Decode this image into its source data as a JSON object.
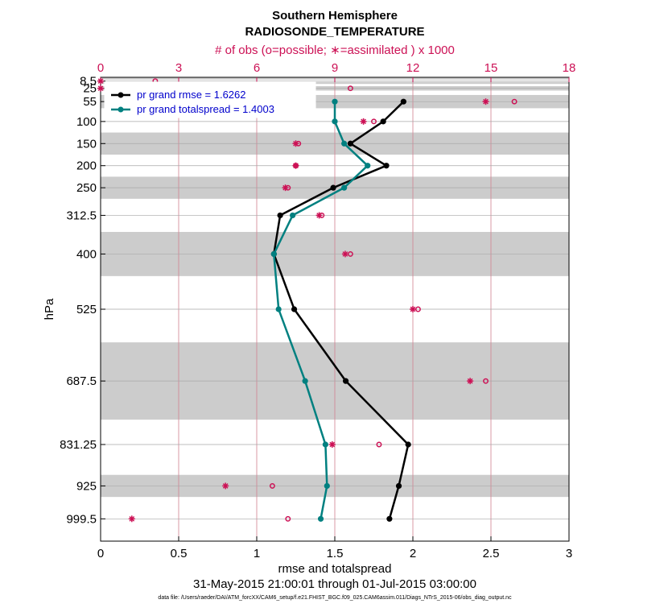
{
  "chart_data": {
    "type": "line",
    "title": "Southern Hemisphere",
    "subtitle": "RADIOSONDE_TEMPERATURE",
    "top_axis_label": "# of obs (o=possible; ∗=assimilated ) x 1000",
    "xlabel": "rmse and totalspread",
    "ylabel": "hPa",
    "date_range": "31-May-2015 21:00:01 through 01-Jul-2015 03:00:00",
    "data_file": "data file: /Users/raeder/DAI/ATM_forcXX/CAM6_setup/f.e21.FHIST_BGC.f09_025.CAM6assim.011/Diags_NTrS_2015-06/obs_diag_output.nc",
    "xlim": [
      0,
      3
    ],
    "xticks": [
      "0",
      "0.5",
      "1",
      "1.5",
      "2",
      "2.5",
      "3"
    ],
    "top_xlim": [
      0,
      18
    ],
    "top_xticks": [
      "0",
      "3",
      "6",
      "9",
      "12",
      "15",
      "18"
    ],
    "ylim": [
      1050,
      0
    ],
    "levels": [
      8.5,
      25,
      55,
      100,
      150,
      200,
      250,
      312.5,
      400,
      525,
      687.5,
      831.25,
      925,
      999.5
    ],
    "level_labels": [
      "8.5",
      "25",
      "55",
      "100",
      "150",
      "200",
      "250",
      "312.5",
      "400",
      "525",
      "687.5",
      "831.25",
      "925",
      "999.5"
    ],
    "series": [
      {
        "name": "pr grand rmse = 1.6262",
        "color": "#000000",
        "levels": [
          55,
          100,
          150,
          200,
          250,
          312.5,
          400,
          525,
          687.5,
          831.25,
          925,
          999.5
        ],
        "values": [
          1.94,
          1.81,
          1.6,
          1.83,
          1.49,
          1.15,
          1.11,
          1.24,
          1.57,
          1.97,
          1.91,
          1.85
        ]
      },
      {
        "name": "pr grand totalspread = 1.4003",
        "color": "#008080",
        "levels": [
          55,
          100,
          150,
          200,
          250,
          312.5,
          400,
          525,
          687.5,
          831.25,
          925,
          999.5
        ],
        "values": [
          1.5,
          1.5,
          1.56,
          1.71,
          1.56,
          1.23,
          1.11,
          1.14,
          1.31,
          1.44,
          1.45,
          1.41
        ]
      }
    ],
    "obs_possible": {
      "levels": [
        8.5,
        25,
        55,
        100,
        150,
        200,
        250,
        312.5,
        400,
        525,
        687.5,
        831.25,
        925,
        999.5
      ],
      "values": [
        2.1,
        9.6,
        15.9,
        10.5,
        7.6,
        7.5,
        7.2,
        8.5,
        9.6,
        12.2,
        14.8,
        10.7,
        6.6,
        7.2
      ]
    },
    "obs_assimilated": {
      "levels": [
        8.5,
        25,
        55,
        100,
        150,
        200,
        250,
        312.5,
        400,
        525,
        687.5,
        831.25,
        925,
        999.5
      ],
      "values": [
        0.0,
        0.0,
        14.8,
        10.1,
        7.5,
        7.5,
        7.1,
        8.4,
        9.4,
        12.0,
        14.2,
        8.9,
        4.8,
        1.2
      ]
    },
    "shaded_bands_hPa": [
      [
        1,
        5
      ],
      [
        10,
        15
      ],
      [
        20,
        30
      ],
      [
        40,
        70
      ],
      [
        125,
        175
      ],
      [
        225,
        275
      ],
      [
        350,
        450
      ],
      [
        600,
        775
      ],
      [
        900,
        950
      ]
    ]
  }
}
